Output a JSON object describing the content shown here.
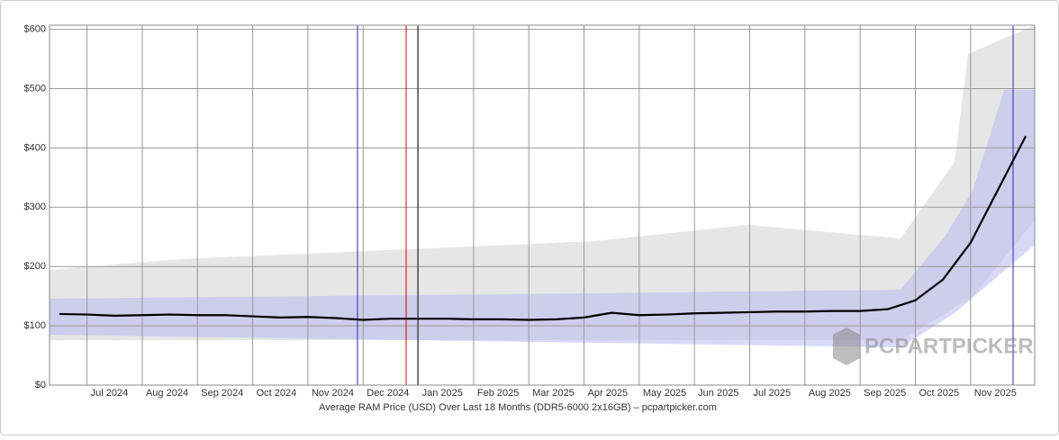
{
  "chart_data": {
    "type": "line",
    "x_label": "Average RAM Price (USD) Over Last 18 Months (DDR5-6000 2x16GB) – pcpartpicker.com",
    "watermark": "PCPARTPICKER",
    "categories": [
      null,
      "Jul 2024",
      null,
      "Aug 2024",
      null,
      "Sep 2024",
      null,
      "Oct 2024",
      null,
      "Nov 2024",
      null,
      "Dec 2024",
      null,
      "Jan 2025",
      null,
      "Feb 2025",
      null,
      "Mar 2025",
      null,
      "Apr 2025",
      null,
      "May 2025",
      null,
      "Jun 2025",
      null,
      "Jul 2025",
      null,
      "Aug 2025",
      null,
      "Sep 2025",
      null,
      "Oct 2025",
      null,
      "Nov 2025",
      null,
      null
    ],
    "values": [
      120,
      119,
      117,
      118,
      119,
      118,
      118,
      116,
      114,
      115,
      113,
      110,
      112,
      112,
      112,
      111,
      111,
      110,
      111,
      114,
      122,
      118,
      119,
      121,
      122,
      123,
      124,
      124,
      125,
      125,
      128,
      143,
      178,
      240,
      330,
      420
    ],
    "color": "#000000",
    "ylim": [
      0,
      607
    ],
    "yticks": [
      {
        "value": 0,
        "label": "$0"
      },
      {
        "value": 100,
        "label": "$100"
      },
      {
        "value": 200,
        "label": "$200"
      },
      {
        "value": 300,
        "label": "$300"
      },
      {
        "value": 400,
        "label": "$400"
      },
      {
        "value": 500,
        "label": "$500"
      },
      {
        "value": 600,
        "label": "$600"
      }
    ],
    "grid": true
  }
}
